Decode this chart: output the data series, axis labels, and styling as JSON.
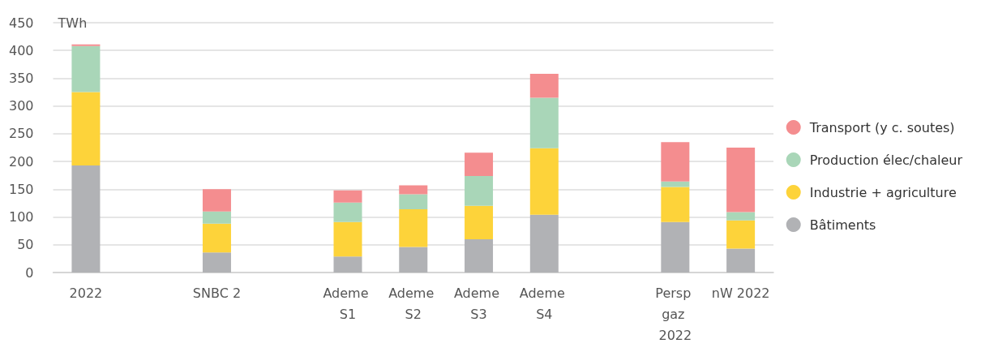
{
  "chart_data": {
    "type": "bar",
    "stacked": true,
    "ylabel": "TWh",
    "categories": [
      "2022",
      null,
      "SNBC 2",
      null,
      "Ademe S1",
      "Ademe S2",
      "Ademe S3",
      "Ademe S4",
      null,
      "Persp gaz 2022",
      "nW 2022"
    ],
    "series": [
      {
        "name": "Bâtiments",
        "color": "#b1b2b5",
        "values": [
          193,
          null,
          36,
          null,
          29,
          46,
          60,
          104,
          null,
          91,
          43
        ]
      },
      {
        "name": "Industrie + agriculture",
        "color": "#fdd33a",
        "values": [
          132,
          null,
          52,
          null,
          62,
          68,
          60,
          120,
          null,
          63,
          51
        ]
      },
      {
        "name": "Production élec/chaleur",
        "color": "#a9d6b8",
        "values": [
          83,
          null,
          22,
          null,
          35,
          27,
          54,
          91,
          null,
          10,
          15
        ]
      },
      {
        "name": "Transport (y c. soutes)",
        "color": "#f48d8f",
        "values": [
          3,
          null,
          40,
          null,
          22,
          16,
          42,
          43,
          null,
          71,
          116
        ]
      }
    ],
    "ylim": [
      0,
      450
    ],
    "yticks": [
      0,
      50,
      100,
      150,
      200,
      250,
      300,
      350,
      400,
      450
    ],
    "grid": "y",
    "legend": "right"
  }
}
